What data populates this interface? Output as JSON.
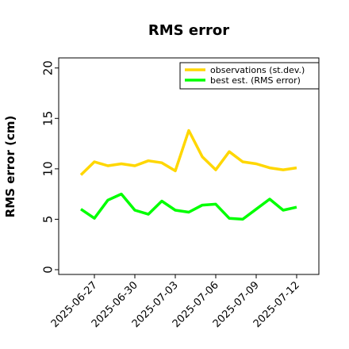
{
  "chart_data": {
    "type": "line",
    "title": "RMS error",
    "ylabel": "RMS error (cm)",
    "xlabel": "",
    "ylim": [
      0,
      21
    ],
    "yticks": [
      0,
      5,
      10,
      15,
      20
    ],
    "grid": false,
    "legend_position": "top-right",
    "x": [
      "2025-06-26",
      "2025-06-27",
      "2025-06-28",
      "2025-06-29",
      "2025-06-30",
      "2025-07-01",
      "2025-07-02",
      "2025-07-03",
      "2025-07-04",
      "2025-07-05",
      "2025-07-06",
      "2025-07-07",
      "2025-07-08",
      "2025-07-09",
      "2025-07-10",
      "2025-07-11",
      "2025-07-12"
    ],
    "xticks": [
      {
        "label": "2025-06-27",
        "color": "#000000"
      },
      {
        "label": "2025-06-30",
        "color": "#000000"
      },
      {
        "label": "2025-07-03",
        "color": "#2e8b2e"
      },
      {
        "label": "2025-07-06",
        "color": "#000000"
      },
      {
        "label": "2025-07-09",
        "color": "#000000"
      },
      {
        "label": "2025-07-12",
        "color": "#000000"
      }
    ],
    "series": [
      {
        "name": "observations (st.dev.)",
        "color": "#ffd700",
        "values": [
          9.4,
          10.7,
          10.3,
          10.5,
          10.3,
          10.8,
          10.6,
          9.8,
          13.8,
          11.2,
          9.9,
          11.7,
          10.7,
          10.5,
          10.1,
          9.9,
          10.1
        ]
      },
      {
        "name": "best est. (RMS error)",
        "color": "#00ff00",
        "values": [
          6.0,
          5.1,
          6.9,
          7.5,
          5.9,
          5.5,
          6.8,
          5.9,
          5.7,
          6.4,
          6.5,
          5.1,
          5.0,
          6.0,
          7.0,
          5.9,
          6.2
        ]
      }
    ]
  }
}
